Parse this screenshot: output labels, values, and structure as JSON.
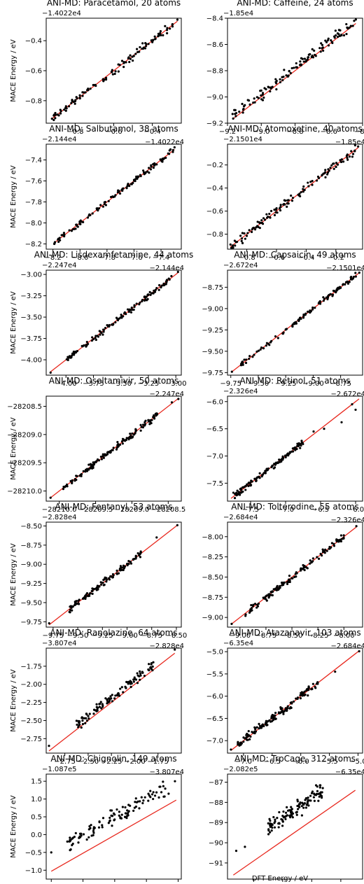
{
  "figure": {
    "ylabel": "MACE Energy / eV",
    "xlabel": "DFT Energy / eV",
    "colors": {
      "points": "#000000",
      "line": "#e8281e",
      "frame": "#000000",
      "background": "#ffffff"
    }
  },
  "chart_data": [
    {
      "type": "scatter",
      "title": "ANI-MD: Paracetamol, 20 atoms",
      "xoffset": "−1.4022e4",
      "yoffset": "−1.4022e4",
      "xlim": [
        -0.95,
        -0.25
      ],
      "ylim": [
        -0.95,
        -0.25
      ],
      "xticks": [
        -0.8,
        -0.6,
        -0.4
      ],
      "xticklabels": [
        "−0.8",
        "−0.6",
        "−0.4"
      ],
      "yticks": [
        -0.8,
        -0.6,
        -0.4
      ],
      "yticklabels": [
        "−0.8",
        "−0.6",
        "−0.4"
      ],
      "line": [
        [
          -0.92,
          -0.92
        ],
        [
          -0.27,
          -0.27
        ]
      ],
      "cluster": {
        "range": [
          -0.92,
          -0.27
        ],
        "count": 110,
        "dispersion": 0.012,
        "shift": 0.0
      },
      "points": [
        [
          -0.92,
          -0.92
        ],
        [
          -0.27,
          -0.26
        ],
        [
          -0.4,
          -0.41
        ]
      ]
    },
    {
      "type": "scatter",
      "title": "ANI-MD: Caffeine, 24 atoms",
      "xoffset": "−1.85e4",
      "yoffset": "−1.85e4",
      "xlim": [
        -9.2,
        -8.4
      ],
      "ylim": [
        -9.2,
        -8.4
      ],
      "xticks": [
        -9.2,
        -9.0,
        -8.8,
        -8.6,
        -8.4
      ],
      "xticklabels": [
        "−9.2",
        "−9.0",
        "−8.8",
        "−8.6",
        "−8.4"
      ],
      "yticks": [
        -9.2,
        -9.0,
        -8.8,
        -8.6,
        -8.4
      ],
      "yticklabels": [
        "−9.2",
        "−9.0",
        "−8.8",
        "−8.6",
        "−8.4"
      ],
      "line": [
        [
          -9.17,
          -9.17
        ],
        [
          -8.44,
          -8.44
        ]
      ],
      "cluster": {
        "range": [
          -9.17,
          -8.44
        ],
        "count": 120,
        "dispersion": 0.02,
        "shift": 0.02
      },
      "points": [
        [
          -9.17,
          -9.13
        ],
        [
          -9.16,
          -9.1
        ],
        [
          -8.44,
          -8.41
        ],
        [
          -8.45,
          -8.42
        ]
      ]
    },
    {
      "type": "scatter",
      "title": "ANI-MD: Salbutamol, 38 atoms",
      "xoffset": "−2.144e4",
      "yoffset": "−2.144e4",
      "xlim": [
        -8.25,
        -7.25
      ],
      "ylim": [
        -8.25,
        -7.25
      ],
      "xticks": [
        -8.2,
        -8.0,
        -7.8,
        -7.6,
        -7.4
      ],
      "xticklabels": [
        "−8.2",
        "−8.0",
        "−7.8",
        "−7.6",
        "−7.4"
      ],
      "yticks": [
        -8.2,
        -8.0,
        -7.8,
        -7.6,
        -7.4
      ],
      "yticklabels": [
        "−8.2",
        "−8.0",
        "−7.8",
        "−7.6",
        "−7.4"
      ],
      "line": [
        [
          -8.19,
          -8.19
        ],
        [
          -7.3,
          -7.3
        ]
      ],
      "cluster": {
        "range": [
          -8.19,
          -7.3
        ],
        "count": 120,
        "dispersion": 0.012,
        "shift": 0.0
      },
      "points": [
        [
          -8.19,
          -8.2
        ],
        [
          -7.3,
          -7.28
        ],
        [
          -7.33,
          -7.3
        ]
      ]
    },
    {
      "type": "scatter",
      "title": "ANI-MD: Atomoxetine, 40 atoms",
      "xoffset": "−2.1501e4",
      "yoffset": "−2.1501e4",
      "xlim": [
        -0.93,
        -0.02
      ],
      "ylim": [
        -0.93,
        -0.02
      ],
      "xticks": [
        -0.8,
        -0.6,
        -0.4,
        -0.2
      ],
      "xticklabels": [
        "−0.8",
        "−0.6",
        "−0.4",
        "−0.2"
      ],
      "yticks": [
        -0.8,
        -0.6,
        -0.4,
        -0.2
      ],
      "yticklabels": [
        "−0.8",
        "−0.6",
        "−0.4",
        "−0.2"
      ],
      "line": [
        [
          -0.91,
          -0.91
        ],
        [
          -0.05,
          -0.05
        ]
      ],
      "cluster": {
        "range": [
          -0.91,
          -0.05
        ],
        "count": 120,
        "dispersion": 0.02,
        "shift": 0.0
      },
      "points": [
        [
          -0.91,
          -0.89
        ],
        [
          -0.05,
          -0.04
        ],
        [
          -0.07,
          -0.03
        ]
      ]
    },
    {
      "type": "scatter",
      "title": "ANI-MD: Lisdexamfetamine, 44 atoms",
      "xoffset": "−2.247e4",
      "yoffset": "−2.247e4",
      "xlim": [
        -4.18,
        -2.95
      ],
      "ylim": [
        -4.18,
        -2.95
      ],
      "xticks": [
        -4.0,
        -3.75,
        -3.5,
        -3.25,
        -3.0
      ],
      "xticklabels": [
        "−4.00",
        "−3.75",
        "−3.50",
        "−3.25",
        "−3.00"
      ],
      "yticks": [
        -4.0,
        -3.75,
        -3.5,
        -3.25,
        -3.0
      ],
      "yticklabels": [
        "−4.00",
        "−3.75",
        "−3.50",
        "−3.25",
        "−3.00"
      ],
      "line": [
        [
          -4.14,
          -4.14
        ],
        [
          -2.98,
          -2.98
        ]
      ],
      "cluster": {
        "range": [
          -4.0,
          -3.05
        ],
        "count": 120,
        "dispersion": 0.017,
        "shift": 0.0
      },
      "points": [
        [
          -4.14,
          -4.15
        ],
        [
          -2.98,
          -2.97
        ],
        [
          -3.04,
          -3.02
        ]
      ]
    },
    {
      "type": "scatter",
      "title": "ANI-MD: Capsaicin, 49 atoms",
      "xoffset": "−2.672e4",
      "yoffset": "−2.672e4",
      "xlim": [
        -9.78,
        -8.55
      ],
      "ylim": [
        -9.78,
        -8.55
      ],
      "xticks": [
        -9.75,
        -9.5,
        -9.25,
        -9.0,
        -8.75
      ],
      "xticklabels": [
        "−9.75",
        "−9.50",
        "−9.25",
        "−9.00",
        "−8.75"
      ],
      "yticks": [
        -9.75,
        -9.5,
        -9.25,
        -9.0,
        -8.75
      ],
      "yticklabels": [
        "−9.75",
        "−9.50",
        "−9.25",
        "−9.00",
        "−8.75"
      ],
      "line": [
        [
          -9.74,
          -9.74
        ],
        [
          -8.58,
          -8.58
        ]
      ],
      "cluster": {
        "range": [
          -9.74,
          -8.6
        ],
        "count": 110,
        "dispersion": 0.016,
        "shift": 0.0
      },
      "points": [
        [
          -9.74,
          -9.74
        ],
        [
          -8.58,
          -8.58
        ]
      ]
    },
    {
      "type": "scatter",
      "title": "ANI-MD: Oseltamivir, 50 atoms",
      "xoffset": "",
      "yoffset": "",
      "xlim": [
        -28210.18,
        -28208.32
      ],
      "ylim": [
        -28210.18,
        -28208.32
      ],
      "xticks": [
        -28210.0,
        -28209.5,
        -28209.0,
        -28208.5
      ],
      "xticklabels": [
        "−28210.0",
        "−28209.5",
        "−28209.0",
        "−28208.5"
      ],
      "yticks": [
        -28210.0,
        -28209.5,
        -28209.0,
        -28208.5
      ],
      "yticklabels": [
        "−28210.0",
        "−28209.5",
        "−28209.0",
        "−28208.5"
      ],
      "line": [
        [
          -28210.12,
          -28210.12
        ],
        [
          -28208.36,
          -28208.36
        ]
      ],
      "cluster": {
        "range": [
          -28209.95,
          -28208.65
        ],
        "count": 130,
        "dispersion": 0.028,
        "shift": 0.0
      },
      "points": [
        [
          -28210.12,
          -28210.12
        ],
        [
          -28208.36,
          -28208.37
        ],
        [
          -28208.45,
          -28208.43
        ]
      ]
    },
    {
      "type": "scatter",
      "title": "ANI-MD: Retinol, 51 atoms",
      "xoffset": "−2.326e4",
      "yoffset": "−2.326e4",
      "xlim": [
        -7.83,
        -5.9
      ],
      "ylim": [
        -7.83,
        -5.9
      ],
      "xticks": [
        -7.5,
        -7.0,
        -6.5,
        -6.0
      ],
      "xticklabels": [
        "−7.5",
        "−7.0",
        "−6.5",
        "−6.0"
      ],
      "yticks": [
        -7.5,
        -7.0,
        -6.5,
        -6.0
      ],
      "yticklabels": [
        "−7.5",
        "−7.0",
        "−6.5",
        "−6.0"
      ],
      "line": [
        [
          -7.78,
          -7.78
        ],
        [
          -5.95,
          -5.95
        ]
      ],
      "cluster": {
        "range": [
          -7.75,
          -6.75
        ],
        "count": 120,
        "dispersion": 0.03,
        "shift": 0.0
      },
      "points": [
        [
          -6.6,
          -6.55
        ],
        [
          -6.45,
          -6.5
        ],
        [
          -6.2,
          -6.38
        ],
        [
          -6.05,
          -6.05
        ],
        [
          -6.0,
          -6.15
        ]
      ]
    },
    {
      "type": "scatter",
      "title": "ANI-MD: Fentanyl, 53 atoms",
      "xoffset": "−2.828e4",
      "yoffset": "−2.828e4",
      "xlim": [
        -9.82,
        -8.45
      ],
      "ylim": [
        -9.82,
        -8.45
      ],
      "xticks": [
        -9.75,
        -9.5,
        -9.25,
        -9.0,
        -8.75,
        -8.5
      ],
      "xticklabels": [
        "−9.75",
        "−9.50",
        "−9.25",
        "−9.00",
        "−8.75",
        "−8.50"
      ],
      "yticks": [
        -9.75,
        -9.5,
        -9.25,
        -9.0,
        -8.75,
        -8.5
      ],
      "yticklabels": [
        "−9.75",
        "−9.50",
        "−9.25",
        "−9.00",
        "−8.75",
        "−8.50"
      ],
      "line": [
        [
          -9.79,
          -9.79
        ],
        [
          -8.49,
          -8.49
        ]
      ],
      "cluster": {
        "range": [
          -9.6,
          -8.85
        ],
        "count": 120,
        "dispersion": 0.02,
        "shift": 0.0
      },
      "points": [
        [
          -9.79,
          -9.77
        ],
        [
          -8.49,
          -8.49
        ],
        [
          -8.7,
          -8.65
        ]
      ]
    },
    {
      "type": "scatter",
      "title": "ANI-MD: Tolterodine, 55 atoms",
      "xoffset": "−2.684e4",
      "yoffset": "−2.684e4",
      "xlim": [
        -9.12,
        -7.82
      ],
      "ylim": [
        -9.12,
        -7.82
      ],
      "xticks": [
        -9.0,
        -8.75,
        -8.5,
        -8.25,
        -8.0
      ],
      "xticklabels": [
        "−9.00",
        "−8.75",
        "−8.50",
        "−8.25",
        "−8.00"
      ],
      "yticks": [
        -9.0,
        -8.75,
        -8.5,
        -8.25,
        -8.0
      ],
      "yticklabels": [
        "−9.00",
        "−8.75",
        "−8.50",
        "−8.25",
        "−8.00"
      ],
      "line": [
        [
          -9.08,
          -9.08
        ],
        [
          -7.88,
          -7.88
        ]
      ],
      "cluster": {
        "range": [
          -8.95,
          -8.0
        ],
        "count": 130,
        "dispersion": 0.02,
        "shift": 0.0
      },
      "points": [
        [
          -9.08,
          -9.08
        ],
        [
          -7.88,
          -7.87
        ]
      ]
    },
    {
      "type": "scatter",
      "title": "ANI-MD: Ranolazine, 64 atoms",
      "xoffset": "−3.807e4",
      "yoffset": "−3.807e4",
      "xlim": [
        -2.95,
        -1.5
      ],
      "ylim": [
        -2.95,
        -1.5
      ],
      "xticks": [
        -2.75,
        -2.5,
        -2.25,
        -2.0,
        -1.75
      ],
      "xticklabels": [
        "−2.75",
        "−2.50",
        "−2.25",
        "−2.00",
        "−1.75"
      ],
      "yticks": [
        -2.75,
        -2.5,
        -2.25,
        -2.0,
        -1.75
      ],
      "yticklabels": [
        "−2.75",
        "−2.50",
        "−2.25",
        "−2.00",
        "−1.75"
      ],
      "line": [
        [
          -2.92,
          -2.92
        ],
        [
          -1.57,
          -1.57
        ]
      ],
      "cluster": {
        "range": [
          -2.65,
          -1.8
        ],
        "count": 110,
        "dispersion": 0.03,
        "shift": 0.06
      },
      "points": [
        [
          -2.92,
          -2.85
        ],
        [
          -1.57,
          -1.52
        ]
      ]
    },
    {
      "type": "scatter",
      "title": "ANI-MD: Atazanavir, 103 atoms",
      "xoffset": "−6.35e4",
      "yoffset": "−6.35e4",
      "xlim": [
        -7.28,
        -4.92
      ],
      "ylim": [
        -7.28,
        -4.92
      ],
      "xticks": [
        -7.0,
        -6.5,
        -6.0,
        -5.5,
        -5.0
      ],
      "xticklabels": [
        "−7.0",
        "−6.5",
        "−6.0",
        "−5.5",
        "−5.0"
      ],
      "yticks": [
        -7.0,
        -6.5,
        -6.0,
        -5.5,
        -5.0
      ],
      "yticklabels": [
        "−7.0",
        "−6.5",
        "−6.0",
        "−5.5",
        "−5.0"
      ],
      "line": [
        [
          -7.22,
          -7.22
        ],
        [
          -4.98,
          -4.98
        ]
      ],
      "cluster": {
        "range": [
          -7.1,
          -5.7
        ],
        "count": 130,
        "dispersion": 0.05,
        "shift": 0.0
      },
      "points": [
        [
          -7.22,
          -7.2
        ],
        [
          -4.98,
          -4.99
        ],
        [
          -5.4,
          -5.45
        ]
      ]
    },
    {
      "type": "scatter",
      "title": "ANI-MD: Chignolin, 149 atoms",
      "xoffset": "−1.087e5",
      "yoffset": "−1.087e5",
      "xlim": [
        -1.08,
        1.05
      ],
      "ylim": [
        -1.25,
        1.7
      ],
      "xticks": [
        -1.0,
        -0.5,
        0.0,
        0.5,
        1.0
      ],
      "xticklabels": [
        "−1.0",
        "−0.5",
        "0.0",
        "0.5",
        "1.0"
      ],
      "yticks": [
        -1.0,
        -0.5,
        0.0,
        0.5,
        1.0,
        1.5
      ],
      "yticklabels": [
        "−1.0",
        "−0.5",
        "0.0",
        "0.5",
        "1.0",
        "1.5"
      ],
      "line": [
        [
          -1.0,
          -1.03
        ],
        [
          0.97,
          0.97
        ]
      ],
      "cluster": {
        "range": [
          -0.75,
          0.8
        ],
        "count": 110,
        "dispersion": 0.1,
        "shift": 0.5
      },
      "points": [
        [
          -1.0,
          -0.5
        ],
        [
          0.95,
          1.5
        ],
        [
          0.85,
          1.15
        ]
      ]
    },
    {
      "type": "scatter",
      "title": "ANI-MD: TrpCage, 312 atoms",
      "xoffset": "−2.082e5",
      "yoffset": "−2.082e5",
      "xlim": [
        -91.9,
        -87.25
      ],
      "ylim": [
        -91.8,
        -86.6
      ],
      "xticks": [
        -91.0,
        -90.0,
        -89.0,
        -88.0
      ],
      "xticklabels": [
        "−91",
        "−90",
        "−89",
        "−88"
      ],
      "yticks": [
        -91.0,
        -90.0,
        -89.0,
        -88.0,
        -87.0
      ],
      "yticklabels": [
        "−91",
        "−90",
        "−89",
        "−88",
        "−87"
      ],
      "line": [
        [
          -91.7,
          -91.6
        ],
        [
          -87.5,
          -87.4
        ]
      ],
      "cluster": {
        "range": [
          -90.5,
          -88.6
        ],
        "count": 120,
        "dispersion": 0.2,
        "shift": 1.2
      },
      "points": [
        [
          -91.6,
          -90.4
        ],
        [
          -91.3,
          -90.2
        ],
        [
          -87.5,
          -86.5
        ]
      ]
    }
  ]
}
